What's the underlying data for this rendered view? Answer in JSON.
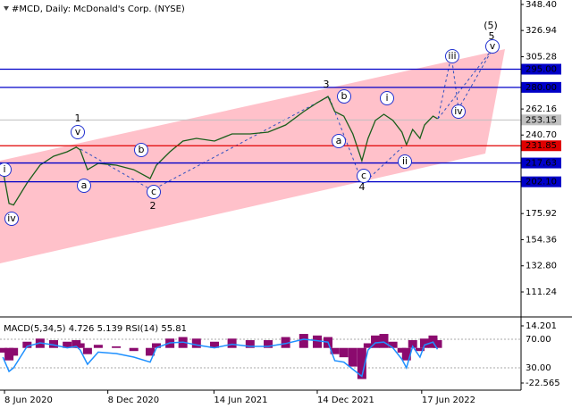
{
  "chart_data": [
    {
      "type": "line",
      "title": "#MCD, Daily:  McDonald's Corp. (NYSE)",
      "x": [
        "2020-06-05",
        "2020-06-16",
        "2020-06-24",
        "2020-07-18",
        "2020-08-10",
        "2020-09-03",
        "2020-09-27",
        "2020-10-13",
        "2020-10-20",
        "2020-11-02",
        "2020-11-21",
        "2020-12-23",
        "2021-01-23",
        "2021-02-21",
        "2021-03-04",
        "2021-03-28",
        "2021-04-20",
        "2021-05-14",
        "2021-06-15",
        "2021-07-16",
        "2021-08-17",
        "2021-09-18",
        "2021-10-19",
        "2021-11-20",
        "2021-12-14",
        "2022-01-02",
        "2022-01-14",
        "2022-01-30",
        "2022-02-15",
        "2022-03-03",
        "2022-03-14",
        "2022-03-27",
        "2022-04-11",
        "2022-04-27",
        "2022-05-13",
        "2022-05-21",
        "2022-06-01",
        "2022-06-14",
        "2022-06-22",
        "2022-07-07",
        "2022-07-15"
      ],
      "values": [
        212,
        184.2,
        183,
        201.1,
        215.8,
        223.2,
        226.9,
        230.6,
        228.4,
        212.1,
        217.3,
        215.8,
        212.1,
        204.8,
        215.8,
        226.9,
        235.7,
        237.9,
        235.7,
        241.6,
        241.6,
        243.1,
        249,
        260,
        267.4,
        272.5,
        260,
        256.3,
        241.6,
        219.5,
        237.9,
        252.7,
        257.8,
        252.7,
        243.1,
        232.7,
        245.3,
        237.9,
        249,
        256.3,
        254.2
      ],
      "color": "#1a5e1a",
      "xlim": [
        "2020-05-31",
        "2022-12-10"
      ],
      "xticks": [
        {
          "value": "2020-06-08",
          "label": "8 Jun 2020"
        },
        {
          "value": "2020-12-08",
          "label": "8 Dec 2020"
        },
        {
          "value": "2021-06-14",
          "label": "14 Jun 2021"
        },
        {
          "value": "2021-12-14",
          "label": "14 Dec 2021"
        },
        {
          "value": "2022-06-17",
          "label": "17 Jun 2022"
        }
      ],
      "ylim": [
        90.63,
        352.08
      ],
      "yticks": [
        {
          "value": 348.4,
          "label": "348.40"
        },
        {
          "value": 326.94,
          "label": "326.94"
        },
        {
          "value": 305.28,
          "label": "305.28"
        },
        {
          "value": 262.16,
          "label": "262.16"
        },
        {
          "value": 240.7,
          "label": "240.70"
        },
        {
          "value": 175.92,
          "label": "175.92"
        },
        {
          "value": 154.36,
          "label": "154.36"
        },
        {
          "value": 132.8,
          "label": "132.80"
        },
        {
          "value": 111.24,
          "label": "111.24"
        }
      ],
      "levels": [
        {
          "value": 295,
          "label": "295.00",
          "color": "#0000c8"
        },
        {
          "value": 280,
          "label": "280.00",
          "color": "#0000c8"
        },
        {
          "value": 231.85,
          "label": "231.85",
          "color": "#e00000"
        },
        {
          "value": 217.63,
          "label": "217.63",
          "color": "#0000c8"
        },
        {
          "value": 202.1,
          "label": "202.10",
          "color": "#0000c8"
        }
      ],
      "current": {
        "value": 253.15,
        "label": "253.15",
        "color": "#c0c0c0"
      },
      "annotations": [
        {
          "text": "i",
          "circled": true
        },
        {
          "text": "iv",
          "circled": true
        },
        {
          "text": "v",
          "circled": true
        },
        {
          "text": "a",
          "circled": true
        },
        {
          "text": "b",
          "circled": true
        },
        {
          "text": "c",
          "circled": true
        },
        {
          "text": "a",
          "circled": true
        },
        {
          "text": "b",
          "circled": true
        },
        {
          "text": "c",
          "circled": true
        },
        {
          "text": "i",
          "circled": true
        },
        {
          "text": "ii",
          "circled": true
        },
        {
          "text": "iii",
          "circled": true
        },
        {
          "text": "iv",
          "circled": true
        },
        {
          "text": "v",
          "circled": true
        },
        {
          "text": "1",
          "circled": false
        },
        {
          "text": "2",
          "circled": false
        },
        {
          "text": "3",
          "circled": false
        },
        {
          "text": "4",
          "circled": false
        },
        {
          "text": "5",
          "circled": false
        },
        {
          "text": "(5)",
          "circled": false
        }
      ]
    },
    {
      "type": "indicator",
      "title": "MACD(5,34,5) 4.726 5.139 RSI(14) 55.81",
      "macd": [
        -3,
        -8,
        -5,
        4,
        6,
        5,
        4,
        5,
        3,
        -4,
        2,
        1,
        -2,
        -5,
        3,
        6,
        7,
        6,
        4,
        6,
        5,
        5,
        7,
        9,
        8,
        7,
        -4,
        -6,
        -12,
        -20,
        3,
        8,
        9,
        4,
        -3,
        -8,
        5,
        -2,
        6,
        8,
        5
      ],
      "rsi": [
        45,
        25,
        30,
        60,
        65,
        62,
        58,
        60,
        55,
        35,
        52,
        50,
        45,
        38,
        58,
        65,
        66,
        62,
        58,
        63,
        60,
        60,
        64,
        70,
        68,
        66,
        40,
        38,
        28,
        18,
        55,
        65,
        66,
        58,
        42,
        30,
        60,
        45,
        62,
        66,
        56
      ],
      "macd_color": "#8b0a6e",
      "rsi_color": "#1e90ff",
      "ylim": [
        -26.59,
        19.37
      ],
      "yticks": [
        {
          "value": 14.201,
          "label": "14.201"
        },
        {
          "value": -22.565,
          "label": "-22.565"
        }
      ],
      "y2lim": [
        0,
        100
      ],
      "y2ticks": [
        {
          "value": 70,
          "label": "70.00"
        },
        {
          "value": 30,
          "label": "30.00"
        }
      ]
    }
  ]
}
